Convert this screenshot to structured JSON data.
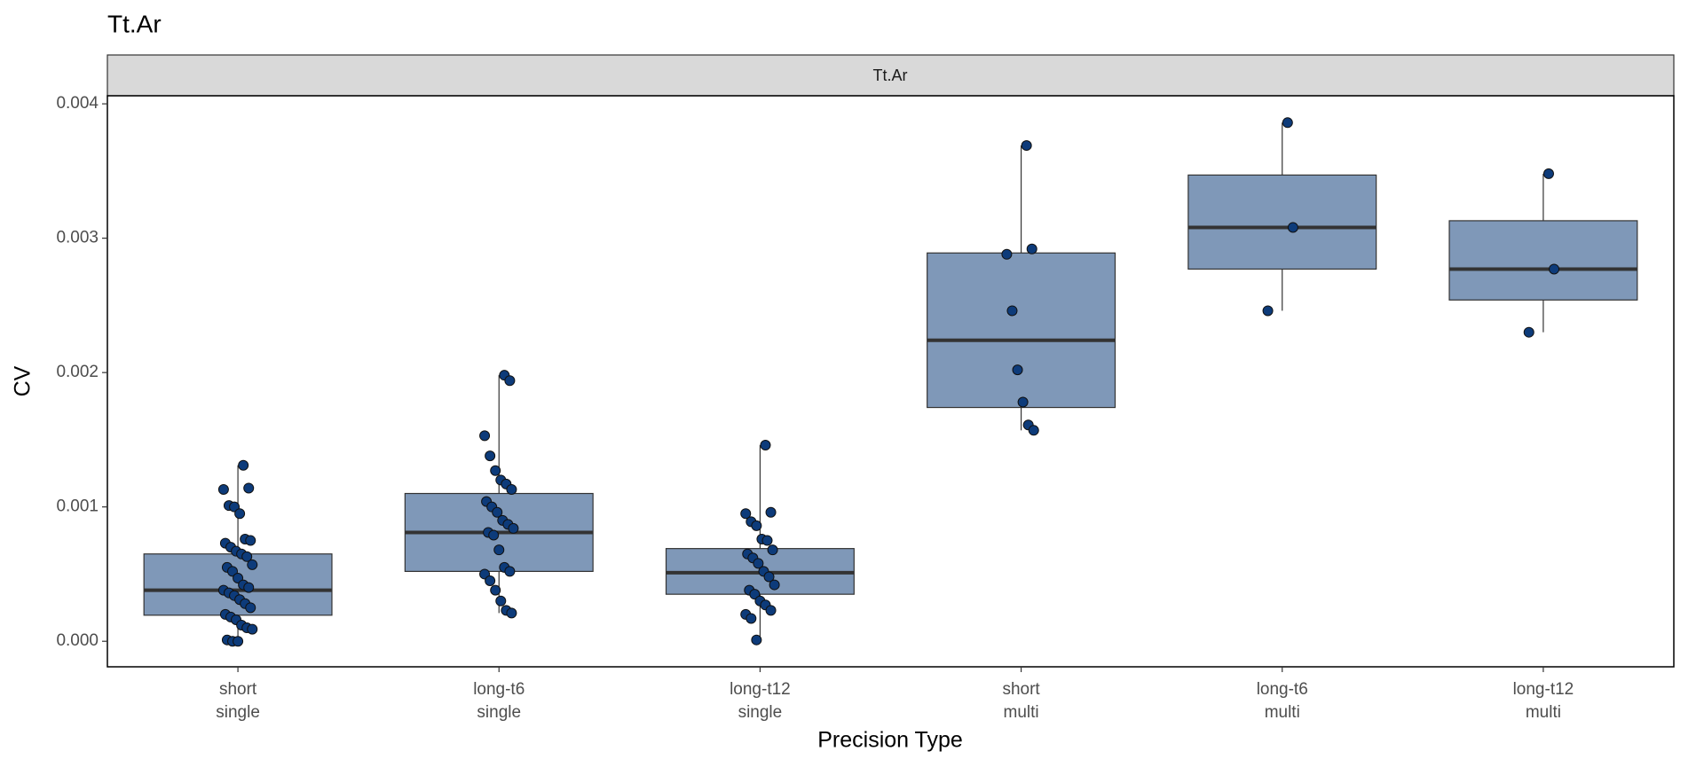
{
  "chart_data": {
    "type": "box",
    "title": "Tt.Ar",
    "facet_label": "Tt.Ar",
    "x_label": "Precision Type",
    "y_label": "CV",
    "categories": [
      [
        "short",
        "single"
      ],
      [
        "long-t6",
        "single"
      ],
      [
        "long-t12",
        "single"
      ],
      [
        "short",
        "multi"
      ],
      [
        "long-t6",
        "multi"
      ],
      [
        "long-t12",
        "multi"
      ]
    ],
    "box_color": "#7f98b8",
    "point_color": "#0d3b7a",
    "ylim": [
      -0.00019,
      0.00406
    ],
    "yticks": [
      {
        "value": 0,
        "label": "0.000"
      },
      {
        "value": 0.001,
        "label": "0.001"
      },
      {
        "value": 0.002,
        "label": "0.002"
      },
      {
        "value": 0.003,
        "label": "0.003"
      },
      {
        "value": 0.004,
        "label": "0.004"
      }
    ],
    "boxes": [
      {
        "whisker_low": 0,
        "q1": 0.000194,
        "median": 0.00038,
        "q3": 0.00065,
        "whisker_high": 0.00131,
        "points": [
          0.00131,
          0.00114,
          0.00113,
          0.00101,
          0.001,
          0.00095,
          0.00076,
          0.00075,
          0.00073,
          0.0007,
          0.00067,
          0.00065,
          0.00063,
          0.00057,
          0.00055,
          0.00052,
          0.00047,
          0.00042,
          0.0004,
          0.00038,
          0.00036,
          0.00034,
          0.00031,
          0.00028,
          0.00025,
          0.0002,
          0.00018,
          0.00016,
          0.00012,
          0.0001,
          9e-05,
          1e-05,
          0,
          0
        ]
      },
      {
        "whisker_low": 0.00021,
        "q1": 0.00052,
        "median": 0.00081,
        "q3": 0.0011,
        "whisker_high": 0.00198,
        "points": [
          0.00198,
          0.00194,
          0.00153,
          0.00138,
          0.00127,
          0.0012,
          0.00117,
          0.00113,
          0.00104,
          0.001,
          0.00096,
          0.0009,
          0.00087,
          0.00084,
          0.00081,
          0.00079,
          0.00068,
          0.00055,
          0.00052,
          0.0005,
          0.00045,
          0.00038,
          0.0003,
          0.00023,
          0.00021
        ]
      },
      {
        "whisker_low": 0,
        "q1": 0.00035,
        "median": 0.00051,
        "q3": 0.00069,
        "whisker_high": 0.00146,
        "points": [
          0.00146,
          0.00096,
          0.00095,
          0.00089,
          0.00086,
          0.00076,
          0.00075,
          0.00068,
          0.00065,
          0.00062,
          0.00058,
          0.00052,
          0.00048,
          0.00042,
          0.00038,
          0.00035,
          0.0003,
          0.00027,
          0.00023,
          0.0002,
          0.00017,
          1e-05
        ]
      },
      {
        "whisker_low": 0.00157,
        "q1": 0.00174,
        "median": 0.00224,
        "q3": 0.00289,
        "whisker_high": 0.00369,
        "points": [
          0.00369,
          0.00292,
          0.00288,
          0.00246,
          0.00202,
          0.00178,
          0.00161,
          0.00157
        ]
      },
      {
        "whisker_low": 0.00246,
        "q1": 0.00277,
        "median": 0.00308,
        "q3": 0.00347,
        "whisker_high": 0.00386,
        "points": [
          0.00386,
          0.00308,
          0.00246
        ]
      },
      {
        "whisker_low": 0.0023,
        "q1": 0.00254,
        "median": 0.00277,
        "q3": 0.00313,
        "whisker_high": 0.00348,
        "points": [
          0.00348,
          0.00277,
          0.0023
        ]
      }
    ]
  }
}
